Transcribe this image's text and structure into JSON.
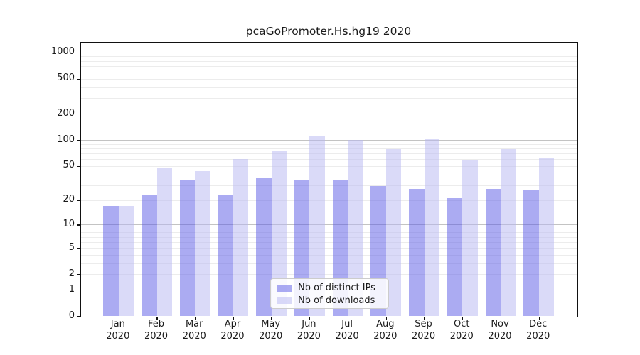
{
  "title": "pcaGoPromoter.Hs.hg19 2020",
  "legend": {
    "position": "lower center",
    "items": [
      {
        "label": "Nb of distinct IPs",
        "color": "#5757e6",
        "alpha": 0.5
      },
      {
        "label": "Nb of downloads",
        "color": "#b5b5f1",
        "alpha": 0.5
      }
    ]
  },
  "axes": {
    "y_tick_labels": [
      "0",
      "1",
      "2",
      "5",
      "10",
      "20",
      "50",
      "100",
      "200",
      "500",
      "1000"
    ],
    "x_tick_month_labels": [
      "Jan",
      "Feb",
      "Mar",
      "Apr",
      "May",
      "Jun",
      "Jul",
      "Aug",
      "Sep",
      "Oct",
      "Nov",
      "Dec"
    ],
    "x_tick_year_label": "2020"
  },
  "chart_data": {
    "type": "bar",
    "title": "pcaGoPromoter.Hs.hg19 2020",
    "categories": [
      "Jan 2020",
      "Feb 2020",
      "Mar 2020",
      "Apr 2020",
      "May 2020",
      "Jun 2020",
      "Jul 2020",
      "Aug 2020",
      "Sep 2020",
      "Oct 2020",
      "Nov 2020",
      "Dec 2020"
    ],
    "series": [
      {
        "name": "Nb of distinct IPs",
        "color": "#5757e6",
        "alpha": 0.5,
        "values": [
          17,
          23,
          35,
          23,
          36,
          34,
          34,
          29,
          27,
          21,
          27,
          26
        ]
      },
      {
        "name": "Nb of downloads",
        "color": "#b5b5f1",
        "alpha": 0.5,
        "values": [
          17,
          48,
          44,
          60,
          74,
          111,
          100,
          78,
          103,
          58,
          78,
          63
        ]
      }
    ],
    "xlabel": "",
    "ylabel": "",
    "y_axis": {
      "scale": "log1p",
      "ticks": [
        0,
        1,
        2,
        5,
        10,
        20,
        50,
        100,
        200,
        500,
        1000
      ],
      "major_grid_values": [
        1,
        10,
        100,
        1000
      ],
      "range_top_value": 1290
    },
    "grid": {
      "shown": true,
      "major_color": "#c3c3c3",
      "minor_color": "#ececec"
    },
    "legend_position": "lower center"
  }
}
